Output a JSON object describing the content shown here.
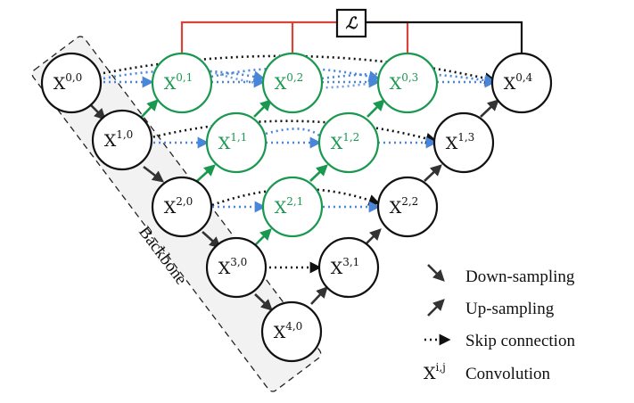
{
  "nodes": [
    {
      "id": "x00",
      "base": "X",
      "sup": "0,0",
      "group": "backbone"
    },
    {
      "id": "x10",
      "base": "X",
      "sup": "1,0",
      "group": "backbone"
    },
    {
      "id": "x20",
      "base": "X",
      "sup": "2,0",
      "group": "backbone"
    },
    {
      "id": "x30",
      "base": "X",
      "sup": "3,0",
      "group": "backbone"
    },
    {
      "id": "x40",
      "base": "X",
      "sup": "4,0",
      "group": "backbone"
    },
    {
      "id": "x01",
      "base": "X",
      "sup": "0,1",
      "group": "nested"
    },
    {
      "id": "x02",
      "base": "X",
      "sup": "0,2",
      "group": "nested"
    },
    {
      "id": "x03",
      "base": "X",
      "sup": "0,3",
      "group": "nested"
    },
    {
      "id": "x11",
      "base": "X",
      "sup": "1,1",
      "group": "nested"
    },
    {
      "id": "x12",
      "base": "X",
      "sup": "1,2",
      "group": "nested"
    },
    {
      "id": "x21",
      "base": "X",
      "sup": "2,1",
      "group": "nested"
    },
    {
      "id": "x04",
      "base": "X",
      "sup": "0,4",
      "group": "decoder"
    },
    {
      "id": "x13",
      "base": "X",
      "sup": "1,3",
      "group": "decoder"
    },
    {
      "id": "x22",
      "base": "X",
      "sup": "2,2",
      "group": "decoder"
    },
    {
      "id": "x31",
      "base": "X",
      "sup": "3,1",
      "group": "decoder"
    }
  ],
  "backbone_label": "Backbone",
  "loss_symbol": "ℒ",
  "legend": {
    "down_sampling": "Down-sampling",
    "up_sampling": "Up-sampling",
    "skip_connection": "Skip connection",
    "convolution_symbol_base": "X",
    "convolution_symbol_sup": "i,j",
    "convolution": "Convolution"
  },
  "colors": {
    "nested_node": "#1a9850",
    "backbone_node": "#111111",
    "dense_skip": "#4a86d8",
    "deep_supervision": "#d9443a",
    "skip": "#111111",
    "backbone_box_fill": "#f2f2f2"
  }
}
